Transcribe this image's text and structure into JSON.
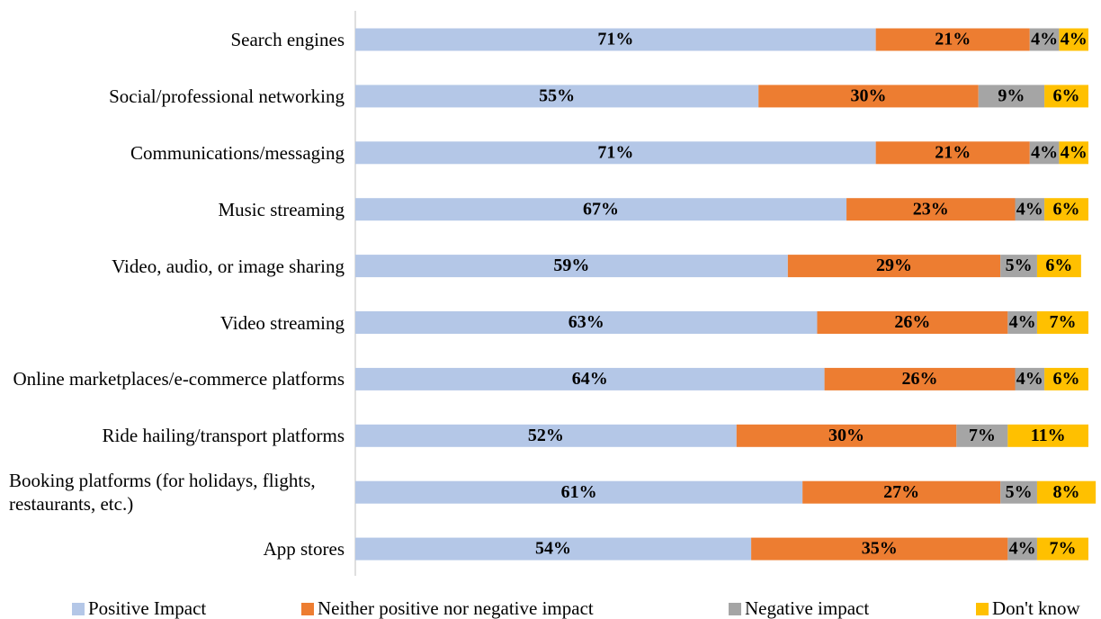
{
  "chart_data": {
    "type": "stacked_bar_horizontal",
    "categories": [
      "Search engines",
      "Social/professional networking",
      "Communications/messaging",
      "Music streaming",
      "Video, audio, or image sharing",
      "Video streaming",
      "Online marketplaces/e-commerce platforms",
      "Ride hailing/transport platforms",
      "Booking platforms (for holidays, flights, restaurants, etc.)",
      "App stores"
    ],
    "xlim": [
      0,
      100
    ],
    "legend": "bottom",
    "series": [
      {
        "name": "Positive Impact",
        "color": "#b4c7e7",
        "values": [
          71,
          55,
          71,
          67,
          59,
          63,
          64,
          52,
          61,
          54
        ],
        "value_labels": [
          "71%",
          "55%",
          "71%",
          "67%",
          "59%",
          "63%",
          "64%",
          "52%",
          "61%",
          "54%"
        ]
      },
      {
        "name": "Neither positive nor negative impact",
        "color": "#ed7d31",
        "values": [
          21,
          30,
          21,
          23,
          29,
          26,
          26,
          30,
          27,
          35
        ],
        "value_labels": [
          "21%",
          "30%",
          "21%",
          "23%",
          "29%",
          "26%",
          "26%",
          "30%",
          "27%",
          "35%"
        ]
      },
      {
        "name": "Negative impact",
        "color": "#a5a5a5",
        "values": [
          4,
          9,
          4,
          4,
          5,
          4,
          4,
          7,
          5,
          4
        ],
        "value_labels": [
          "4%",
          "9%",
          "4%",
          "4%",
          "5%",
          "4%",
          "4%",
          "7%",
          "5%",
          "4%"
        ]
      },
      {
        "name": "Don't know",
        "color": "#ffc000",
        "values": [
          4,
          6,
          4,
          6,
          6,
          7,
          6,
          11,
          8,
          7
        ],
        "value_labels": [
          "4%",
          "6%",
          "4%",
          "6%",
          "6%",
          "7%",
          "6%",
          "11%",
          "8%",
          "7%"
        ]
      }
    ]
  }
}
